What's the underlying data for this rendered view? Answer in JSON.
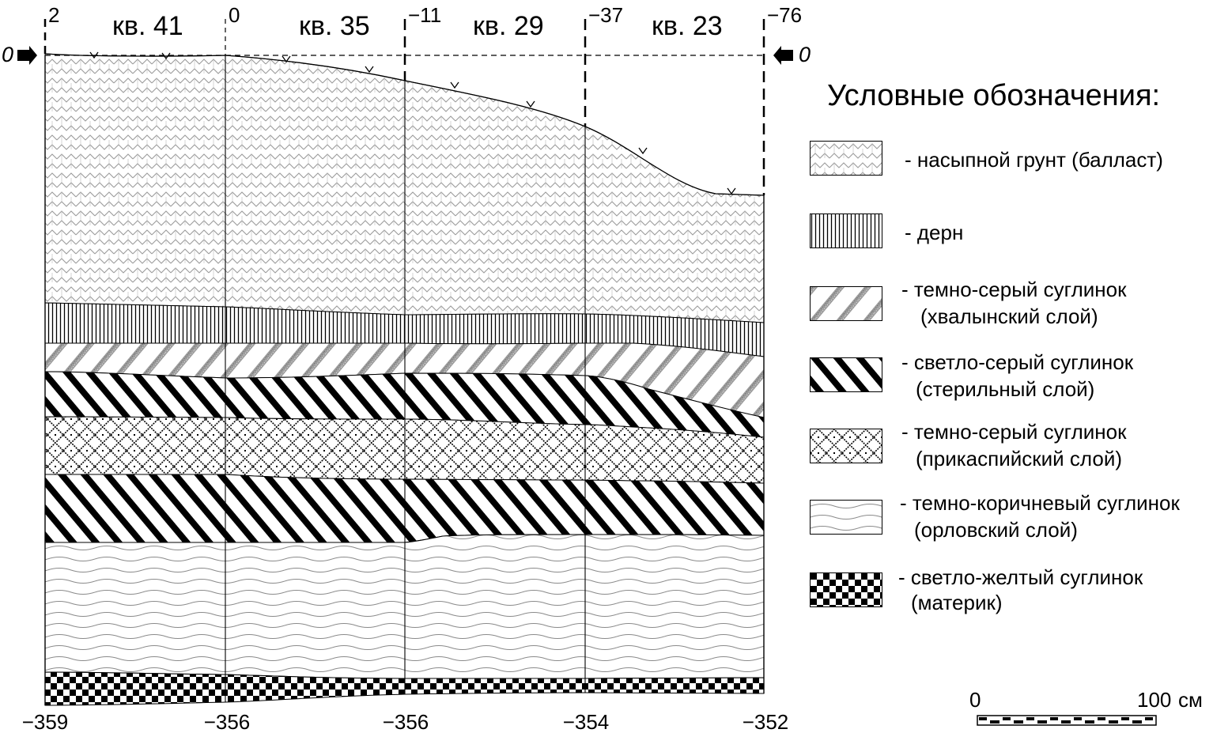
{
  "profile": {
    "squares": [
      {
        "label": "кв. 41",
        "top_value": "2",
        "bottom_value": "−359"
      },
      {
        "label": "кв. 35",
        "top_value": "0",
        "bottom_value": "−356"
      },
      {
        "label": "кв. 29",
        "top_value": "−11",
        "bottom_value": "−356"
      },
      {
        "label": "кв. 23",
        "top_value": "−37",
        "bottom_value": "−354"
      }
    ],
    "end_top_value": "−76",
    "end_bottom_value": "−352",
    "datum_left": "0",
    "datum_right": "0"
  },
  "legend": {
    "title": "Условные обозначения:",
    "items": [
      {
        "pattern": "ballast",
        "lines": [
          "- насыпной грунт (балласт)"
        ]
      },
      {
        "pattern": "sod",
        "lines": [
          "- дерн"
        ]
      },
      {
        "pattern": "dark-gray-hatch",
        "lines": [
          "- темно-серый суглинок",
          "(хвалынский слой)"
        ]
      },
      {
        "pattern": "light-gray-diag",
        "lines": [
          "- светло-серый суглинок",
          "(стерильный слой)"
        ]
      },
      {
        "pattern": "dark-gray-cross",
        "lines": [
          "- темно-серый суглинок",
          "(прикаспийский слой)"
        ]
      },
      {
        "pattern": "waves",
        "lines": [
          "- темно-коричневый суглинок",
          "(орловский слой)"
        ]
      },
      {
        "pattern": "checker",
        "lines": [
          "- светло-желтый суглинок",
          "(материк)"
        ]
      }
    ]
  },
  "scale": {
    "start": "0",
    "end": "100",
    "unit": "см"
  }
}
